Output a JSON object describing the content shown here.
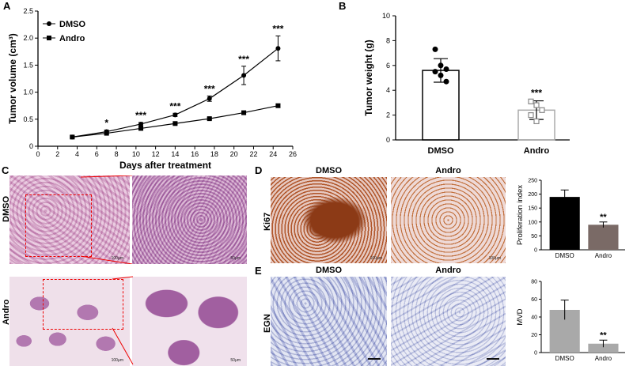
{
  "panels": {
    "a": "A",
    "b": "B",
    "c": "C",
    "d": "D",
    "e": "E"
  },
  "chart_data": [
    {
      "id": "A",
      "type": "line",
      "xlabel": "Days after treatment",
      "ylabel": "Tumor volume (cm³)",
      "xlim": [
        0,
        26
      ],
      "ylim": [
        0,
        2.5
      ],
      "xticks": [
        "0",
        "2",
        "4",
        "6",
        "8",
        "10",
        "12",
        "14",
        "16",
        "18",
        "20",
        "22",
        "24",
        "26"
      ],
      "yticks": [
        "0",
        "0.5",
        "1.0",
        "1.5",
        "2.0",
        "2.5"
      ],
      "x": [
        3.5,
        7,
        10.5,
        14,
        17.5,
        21,
        24.5
      ],
      "series": [
        {
          "name": "DMSO",
          "marker": "circle",
          "values": [
            0.17,
            0.27,
            0.41,
            0.58,
            0.88,
            1.31,
            1.81
          ],
          "errors": [
            0.02,
            0.03,
            0.03,
            0.03,
            0.05,
            0.17,
            0.23
          ]
        },
        {
          "name": "Andro",
          "marker": "square",
          "values": [
            0.17,
            0.24,
            0.33,
            0.42,
            0.51,
            0.62,
            0.75
          ],
          "errors": [
            0.02,
            0.02,
            0.02,
            0.02,
            0.02,
            0.03,
            0.03
          ]
        }
      ],
      "annotations": [
        "*",
        "***",
        "***",
        "***",
        "***",
        "***"
      ],
      "legend": "top-left"
    },
    {
      "id": "B",
      "type": "bar",
      "ylabel": "Tumor weight (g)",
      "ylim": [
        0,
        10
      ],
      "yticks": [
        "0",
        "2",
        "4",
        "6",
        "8",
        "10"
      ],
      "categories": [
        "DMSO",
        "Andro"
      ],
      "values": [
        5.6,
        2.4
      ],
      "errors": [
        0.95,
        0.75
      ],
      "points": [
        [
          7.3,
          6.0,
          5.7,
          5.5,
          5.2,
          4.7
        ],
        [
          3.1,
          2.8,
          2.4,
          2.0,
          1.5
        ]
      ],
      "annotation": "***"
    },
    {
      "id": "D-bar",
      "type": "bar",
      "ylabel": "Proliferation index",
      "ylim": [
        0,
        250
      ],
      "yticks": [
        "0",
        "50",
        "100",
        "150",
        "200",
        "250"
      ],
      "categories": [
        "DMSO",
        "Andro"
      ],
      "values": [
        190,
        90
      ],
      "errors": [
        25,
        10
      ],
      "annotation": "**"
    },
    {
      "id": "E-bar",
      "type": "bar",
      "ylabel": "MVD",
      "ylim": [
        0,
        80
      ],
      "yticks": [
        "0",
        "20",
        "40",
        "60",
        "80"
      ],
      "categories": [
        "DMSO",
        "Andro"
      ],
      "values": [
        48,
        10
      ],
      "errors": [
        11,
        4
      ],
      "annotation": "**"
    }
  ],
  "histology": {
    "c_dmso_label": "DMSO",
    "c_andro_label": "Andro",
    "d_dmso_title": "DMSO",
    "d_andro_title": "Andro",
    "d_side": "Ki67",
    "e_dmso_title": "DMSO",
    "e_andro_title": "Andro",
    "e_side": "EGN",
    "scale_100": "100μm",
    "scale_50": "50μm"
  }
}
